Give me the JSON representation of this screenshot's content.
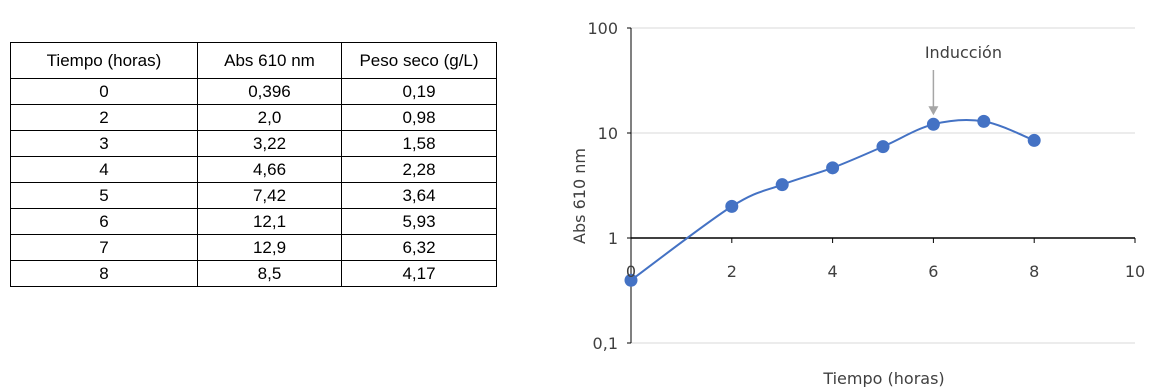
{
  "table": {
    "headers": [
      "Tiempo (horas)",
      "Abs 610 nm",
      "Peso seco (g/L)"
    ],
    "rows": [
      [
        "0",
        "0,396",
        "0,19"
      ],
      [
        "2",
        "2,0",
        "0,98"
      ],
      [
        "3",
        "3,22",
        "1,58"
      ],
      [
        "4",
        "4,66",
        "2,28"
      ],
      [
        "5",
        "7,42",
        "3,64"
      ],
      [
        "6",
        "12,1",
        "5,93"
      ],
      [
        "7",
        "12,9",
        "6,32"
      ],
      [
        "8",
        "8,5",
        "4,17"
      ]
    ]
  },
  "chart_data": {
    "type": "scatter",
    "title": "",
    "xlabel": "Tiempo (horas)",
    "ylabel": "Abs 610 nm",
    "xlim": [
      0,
      10
    ],
    "ylim": [
      0.1,
      100
    ],
    "yscale": "log",
    "x_ticks": [
      0,
      2,
      4,
      6,
      8,
      10
    ],
    "x_tick_labels": [
      "0",
      "2",
      "4",
      "6",
      "8",
      "10"
    ],
    "y_ticks": [
      0.1,
      1,
      10,
      100
    ],
    "y_tick_labels": [
      "0,1",
      "1",
      "10",
      "100"
    ],
    "grid": true,
    "smooth_line": true,
    "color": "#4472C4",
    "series": [
      {
        "x": [
          0,
          2,
          3,
          4,
          5,
          6,
          7,
          8
        ],
        "y": [
          0.396,
          2.0,
          3.22,
          4.66,
          7.42,
          12.1,
          12.9,
          8.5
        ]
      }
    ],
    "annotations": [
      {
        "text": "Inducción",
        "x": 6,
        "arrow_to_y": 12.1
      }
    ]
  }
}
